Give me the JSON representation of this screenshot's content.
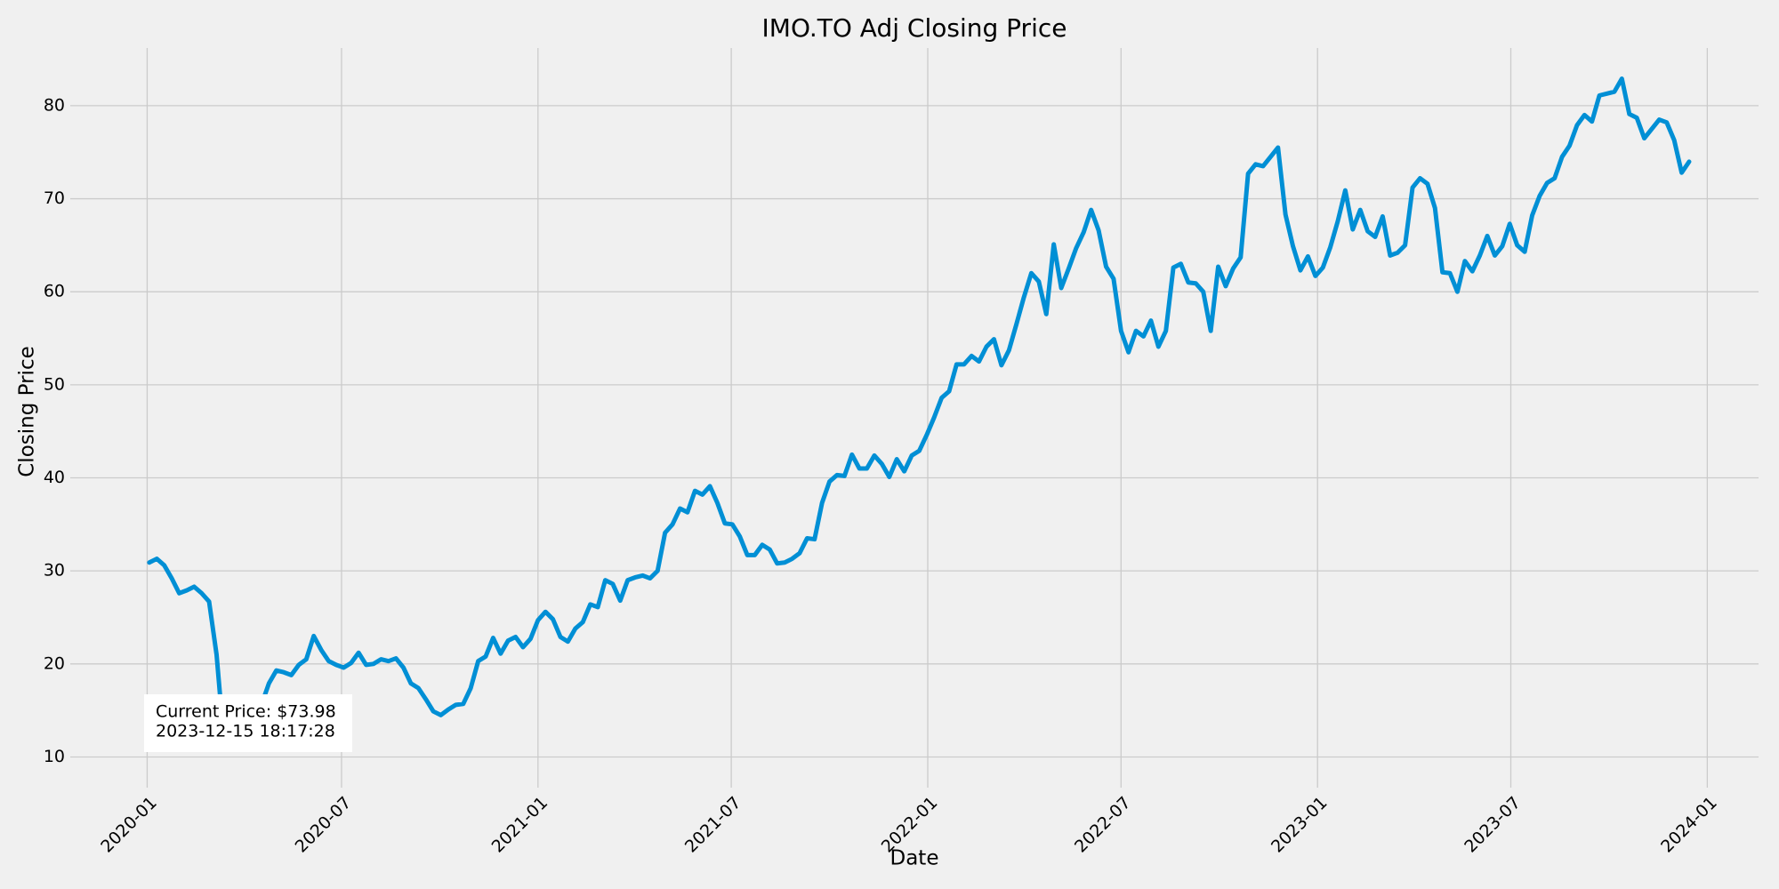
{
  "chart_data": {
    "type": "line",
    "title": "IMO.TO Adj Closing Price",
    "xlabel": "Date",
    "ylabel": "Closing Price",
    "color": "#008fd5",
    "grid": true,
    "annotation": [
      "Current Price: $73.98",
      "2023-12-15 18:17:28"
    ],
    "xlim": [
      "2019-10-21",
      "2024-02-18"
    ],
    "ylim": [
      6.7,
      86.2
    ],
    "xticks": [
      {
        "value": "2020-01-01",
        "label": "2020-01"
      },
      {
        "value": "2020-07-01",
        "label": "2020-07"
      },
      {
        "value": "2021-01-01",
        "label": "2021-01"
      },
      {
        "value": "2021-07-01",
        "label": "2021-07"
      },
      {
        "value": "2022-01-01",
        "label": "2022-01"
      },
      {
        "value": "2022-07-01",
        "label": "2022-07"
      },
      {
        "value": "2023-01-01",
        "label": "2023-01"
      },
      {
        "value": "2023-07-01",
        "label": "2023-07"
      },
      {
        "value": "2024-01-01",
        "label": "2024-01"
      }
    ],
    "yticks": [
      10,
      20,
      30,
      40,
      50,
      60,
      70,
      80
    ],
    "x": [
      "2020-01-03",
      "2020-01-10",
      "2020-01-17",
      "2020-01-24",
      "2020-01-31",
      "2020-02-07",
      "2020-02-14",
      "2020-02-21",
      "2020-02-28",
      "2020-03-06",
      "2020-03-13",
      "2020-03-20",
      "2020-03-27",
      "2020-04-03",
      "2020-04-10",
      "2020-04-17",
      "2020-04-24",
      "2020-05-01",
      "2020-05-08",
      "2020-05-15",
      "2020-05-22",
      "2020-05-29",
      "2020-06-05",
      "2020-06-12",
      "2020-06-19",
      "2020-06-26",
      "2020-07-03",
      "2020-07-10",
      "2020-07-17",
      "2020-07-24",
      "2020-07-31",
      "2020-08-07",
      "2020-08-14",
      "2020-08-21",
      "2020-08-28",
      "2020-09-04",
      "2020-09-11",
      "2020-09-18",
      "2020-09-25",
      "2020-10-02",
      "2020-10-09",
      "2020-10-16",
      "2020-10-23",
      "2020-10-30",
      "2020-11-06",
      "2020-11-13",
      "2020-11-20",
      "2020-11-27",
      "2020-12-04",
      "2020-12-11",
      "2020-12-18",
      "2020-12-25",
      "2021-01-01",
      "2021-01-08",
      "2021-01-15",
      "2021-01-22",
      "2021-01-29",
      "2021-02-05",
      "2021-02-12",
      "2021-02-19",
      "2021-02-26",
      "2021-03-05",
      "2021-03-12",
      "2021-03-19",
      "2021-03-26",
      "2021-04-02",
      "2021-04-09",
      "2021-04-16",
      "2021-04-23",
      "2021-04-30",
      "2021-05-07",
      "2021-05-14",
      "2021-05-21",
      "2021-05-28",
      "2021-06-04",
      "2021-06-11",
      "2021-06-18",
      "2021-06-25",
      "2021-07-02",
      "2021-07-09",
      "2021-07-16",
      "2021-07-23",
      "2021-07-30",
      "2021-08-06",
      "2021-08-13",
      "2021-08-20",
      "2021-08-27",
      "2021-09-03",
      "2021-09-10",
      "2021-09-17",
      "2021-09-24",
      "2021-10-01",
      "2021-10-08",
      "2021-10-15",
      "2021-10-22",
      "2021-10-29",
      "2021-11-05",
      "2021-11-12",
      "2021-11-19",
      "2021-11-26",
      "2021-12-03",
      "2021-12-10",
      "2021-12-17",
      "2021-12-24",
      "2021-12-31",
      "2022-01-07",
      "2022-01-14",
      "2022-01-21",
      "2022-01-28",
      "2022-02-04",
      "2022-02-11",
      "2022-02-18",
      "2022-02-25",
      "2022-03-04",
      "2022-03-11",
      "2022-03-18",
      "2022-03-25",
      "2022-04-01",
      "2022-04-08",
      "2022-04-15",
      "2022-04-22",
      "2022-04-29",
      "2022-05-06",
      "2022-05-13",
      "2022-05-20",
      "2022-05-27",
      "2022-06-03",
      "2022-06-10",
      "2022-06-17",
      "2022-06-24",
      "2022-07-01",
      "2022-07-08",
      "2022-07-15",
      "2022-07-22",
      "2022-07-29",
      "2022-08-05",
      "2022-08-12",
      "2022-08-19",
      "2022-08-26",
      "2022-09-02",
      "2022-09-09",
      "2022-09-16",
      "2022-09-23",
      "2022-09-30",
      "2022-10-07",
      "2022-10-14",
      "2022-10-21",
      "2022-10-28",
      "2022-11-04",
      "2022-11-11",
      "2022-11-18",
      "2022-11-25",
      "2022-12-02",
      "2022-12-09",
      "2022-12-16",
      "2022-12-23",
      "2022-12-30",
      "2023-01-06",
      "2023-01-13",
      "2023-01-20",
      "2023-01-27",
      "2023-02-03",
      "2023-02-10",
      "2023-02-17",
      "2023-02-24",
      "2023-03-03",
      "2023-03-10",
      "2023-03-17",
      "2023-03-24",
      "2023-03-31",
      "2023-04-07",
      "2023-04-14",
      "2023-04-21",
      "2023-04-28",
      "2023-05-05",
      "2023-05-12",
      "2023-05-19",
      "2023-05-26",
      "2023-06-02",
      "2023-06-09",
      "2023-06-16",
      "2023-06-23",
      "2023-06-30",
      "2023-07-07",
      "2023-07-14",
      "2023-07-21",
      "2023-07-28",
      "2023-08-04",
      "2023-08-11",
      "2023-08-18",
      "2023-08-25",
      "2023-09-01",
      "2023-09-08",
      "2023-09-15",
      "2023-09-22",
      "2023-09-29",
      "2023-10-06",
      "2023-10-13",
      "2023-10-20",
      "2023-10-27",
      "2023-11-03",
      "2023-11-10",
      "2023-11-17",
      "2023-11-24",
      "2023-12-01",
      "2023-12-08",
      "2023-12-15"
    ],
    "values": [
      30.9,
      31.3,
      30.6,
      29.2,
      27.6,
      27.9,
      28.3,
      27.6,
      26.7,
      21.0,
      11.6,
      13.4,
      14.3,
      15.0,
      15.3,
      15.6,
      17.9,
      19.3,
      19.1,
      18.8,
      19.9,
      20.5,
      23.0,
      21.5,
      20.3,
      19.9,
      19.6,
      20.1,
      21.2,
      19.9,
      20.0,
      20.5,
      20.3,
      20.6,
      19.6,
      17.9,
      17.4,
      16.2,
      14.9,
      14.5,
      15.1,
      15.6,
      15.7,
      17.4,
      20.3,
      20.8,
      22.8,
      21.1,
      22.5,
      22.9,
      21.8,
      22.7,
      24.7,
      25.6,
      24.8,
      22.9,
      22.4,
      23.8,
      24.5,
      26.4,
      26.1,
      29.0,
      28.6,
      26.8,
      29.0,
      29.3,
      29.5,
      29.2,
      30.0,
      34.1,
      35.0,
      36.7,
      36.3,
      38.6,
      38.2,
      39.1,
      37.3,
      35.1,
      35.0,
      33.7,
      31.7,
      31.7,
      32.8,
      32.3,
      30.8,
      30.9,
      31.3,
      31.9,
      33.5,
      33.4,
      37.3,
      39.6,
      40.3,
      40.2,
      42.5,
      41.0,
      41.0,
      42.4,
      41.5,
      40.1,
      42.0,
      40.7,
      42.4,
      42.9,
      44.6,
      46.5,
      48.6,
      49.3,
      52.2,
      52.2,
      53.1,
      52.5,
      54.1,
      54.9,
      52.1,
      53.7,
      56.5,
      59.4,
      62.0,
      61.1,
      57.6,
      65.1,
      60.4,
      62.5,
      64.7,
      66.4,
      68.8,
      66.6,
      62.7,
      61.4,
      55.8,
      53.5,
      55.8,
      55.2,
      56.9,
      54.1,
      55.8,
      62.6,
      63.0,
      61.0,
      60.9,
      60.0,
      55.8,
      62.7,
      60.6,
      62.5,
      63.7,
      72.7,
      73.7,
      73.5,
      74.5,
      75.5,
      68.3,
      64.9,
      62.3,
      63.8,
      61.7,
      62.6,
      64.8,
      67.6,
      70.9,
      66.7,
      68.8,
      66.5,
      65.9,
      68.1,
      63.9,
      64.2,
      65.0,
      71.2,
      72.2,
      71.6,
      69.0,
      62.1,
      62.0,
      60.0,
      63.3,
      62.2,
      63.9,
      66.0,
      63.9,
      64.9,
      67.3,
      65.0,
      64.3,
      68.2,
      70.3,
      71.7,
      72.2,
      74.5,
      75.7,
      77.9,
      79.0,
      78.3,
      81.1,
      81.3,
      81.5,
      82.9,
      79.1,
      78.7,
      76.5,
      77.5,
      78.5,
      78.2,
      76.3,
      72.8,
      73.98
    ]
  }
}
